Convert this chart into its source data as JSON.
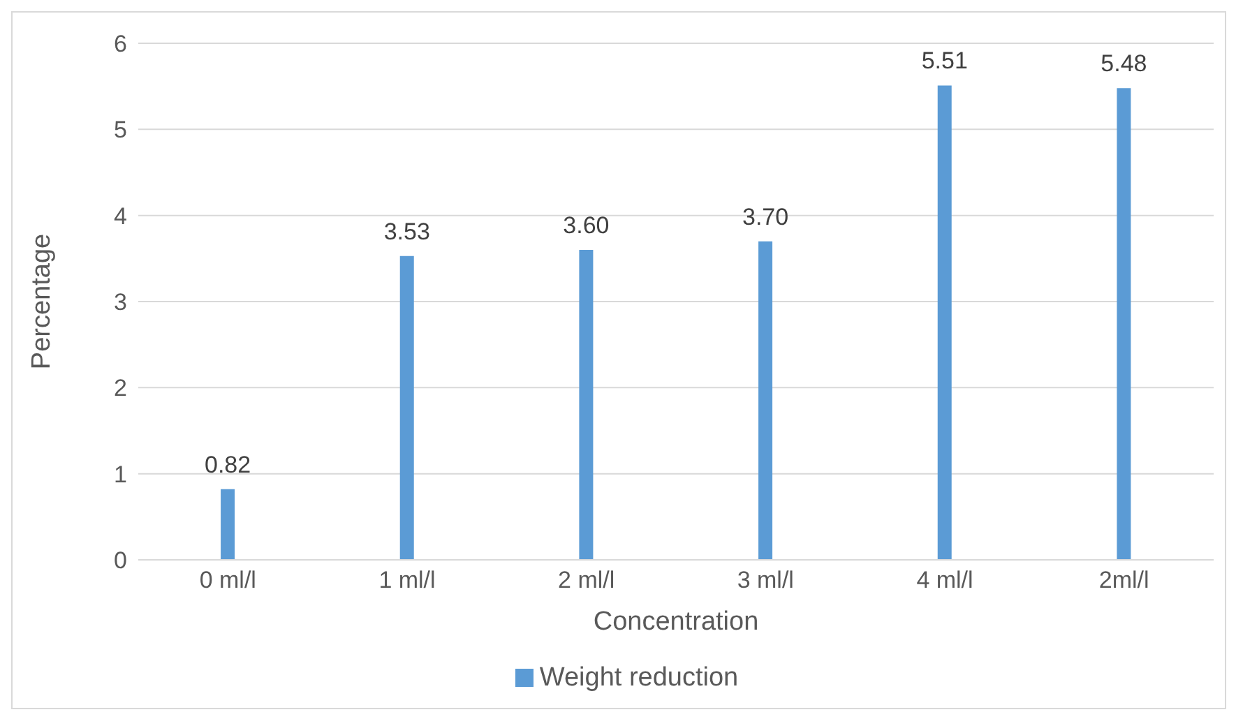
{
  "chart_data": {
    "type": "bar",
    "xlabel": "Concentration",
    "ylabel": "Percentage",
    "categories": [
      "0 ml/l",
      "1 ml/l",
      "2 ml/l",
      "3 ml/l",
      "4 ml/l",
      "2ml/l"
    ],
    "series": [
      {
        "name": "Weight reduction",
        "color": "#5b9bd5",
        "values": [
          0.82,
          3.53,
          3.6,
          3.7,
          5.51,
          5.48
        ],
        "value_labels": [
          "0.82",
          "3.53",
          "3.60",
          "3.70",
          "5.51",
          "5.48"
        ]
      }
    ],
    "ylim": [
      0,
      6
    ],
    "yticks": [
      0,
      1,
      2,
      3,
      4,
      5,
      6
    ],
    "grid": "y",
    "legend": "bottom"
  }
}
